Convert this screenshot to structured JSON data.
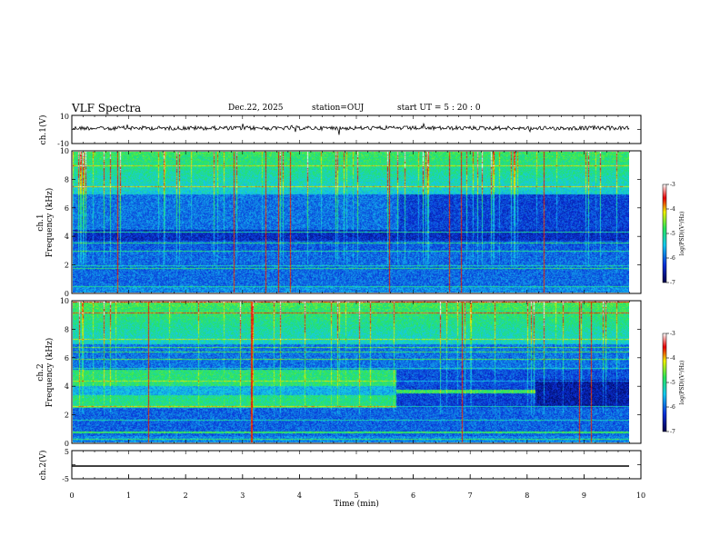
{
  "header": {
    "title": "VLF Spectra",
    "date": "Dec.22, 2025",
    "station": "station=OUJ",
    "start": "start  UT =  5 : 20 : 0"
  },
  "chart_data": [
    {
      "type": "line",
      "id": "waveform-ch1",
      "ylabel": "ch.1(V)",
      "ylim": [
        -10,
        10
      ],
      "y_ticks": [
        "10",
        "-10"
      ],
      "baseline": 0,
      "description_series": "noisy waveform near 1 V"
    },
    {
      "type": "heatmap",
      "id": "spectrogram-ch1",
      "ylabel": "ch.1\nFrequency (kHz)",
      "ylim": [
        0,
        10
      ],
      "y_ticks": [
        "0",
        "2",
        "4",
        "6",
        "8",
        "10"
      ],
      "colorbar": {
        "label": "log(PSD)(V²/Hz)",
        "range": [
          -7,
          -3
        ],
        "ticks": [
          "-3",
          "-4",
          "-5",
          "-6",
          "-7"
        ]
      }
    },
    {
      "type": "heatmap",
      "id": "spectrogram-ch2",
      "ylabel": "ch.2\nFrequency (kHz)",
      "ylim": [
        0,
        10
      ],
      "y_ticks": [
        "0",
        "2",
        "4",
        "6",
        "8",
        "10"
      ],
      "colorbar": {
        "label": "log(PSD)(V²/Hz)",
        "range": [
          -7,
          -3
        ],
        "ticks": [
          "-3",
          "-4",
          "-5",
          "-6",
          "-7"
        ]
      }
    },
    {
      "type": "line",
      "id": "waveform-ch2",
      "ylabel": "ch.2(V)",
      "ylim": [
        -5,
        5
      ],
      "y_ticks": [
        "5",
        "-5"
      ],
      "baseline": -1
    }
  ],
  "xaxis": {
    "label": "Time (min)",
    "range": [
      0,
      10
    ],
    "ticks": [
      "0",
      "1",
      "2",
      "3",
      "4",
      "5",
      "6",
      "7",
      "8",
      "9",
      "10"
    ]
  },
  "ylabels": {
    "wave1": "ch.1(V)",
    "spec1_a": "ch.1",
    "spec1_b": "Frequency (kHz)",
    "spec2_a": "ch.2",
    "spec2_b": "Frequency (kHz)",
    "wave2": "ch.2(V)"
  },
  "colorbar_label": "log(PSD)(V²/Hz)",
  "colorbar_ticks": [
    "-3",
    "-4",
    "-5",
    "-6",
    "-7"
  ],
  "freq_ticks": [
    "0",
    "2",
    "4",
    "6",
    "8",
    "10"
  ],
  "wave1_ticks": [
    "10",
    "-10"
  ],
  "wave2_ticks": [
    "5",
    "-5"
  ],
  "colors": {
    "deep": "#00007a",
    "blue": "#0a2fd8",
    "cyan": "#14c8f0",
    "green": "#28e65a",
    "yellow": "#f0f000",
    "red": "#e60000"
  }
}
